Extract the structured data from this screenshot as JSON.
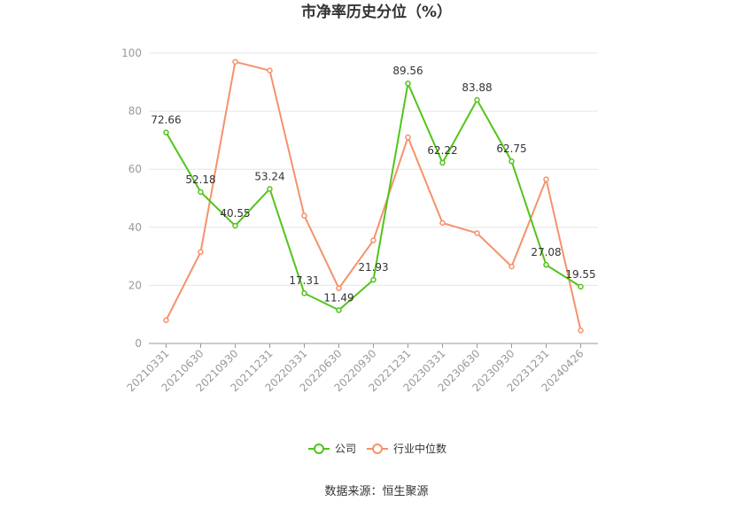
{
  "title": "市净率历史分位（%）",
  "source": "数据来源：恒生聚源",
  "colors": {
    "company": "#52c41a",
    "industry": "#f5926a",
    "grid": "#e6e6e6",
    "axis": "#999999"
  },
  "chart_data": {
    "type": "line",
    "title": "市净率历史分位（%）",
    "categories": [
      "20210331",
      "20210630",
      "20210930",
      "20211231",
      "20220331",
      "20220630",
      "20220930",
      "20221231",
      "20230331",
      "20230630",
      "20230930",
      "20231231",
      "20240426"
    ],
    "ylim": [
      0,
      100
    ],
    "yticks": [
      0,
      20,
      40,
      60,
      80,
      100
    ],
    "grid": true,
    "legend": "bottom-center",
    "series": [
      {
        "name": "公司",
        "color": "#52c41a",
        "labeled": true,
        "values": [
          72.66,
          52.18,
          40.55,
          53.24,
          17.31,
          11.49,
          21.93,
          89.56,
          62.22,
          83.88,
          62.75,
          27.08,
          19.55
        ]
      },
      {
        "name": "行业中位数",
        "color": "#f5926a",
        "labeled": false,
        "values": [
          8.0,
          31.5,
          97.0,
          94.0,
          44.0,
          19.0,
          35.5,
          71.0,
          41.5,
          38.0,
          26.5,
          56.5,
          4.5
        ]
      }
    ]
  }
}
